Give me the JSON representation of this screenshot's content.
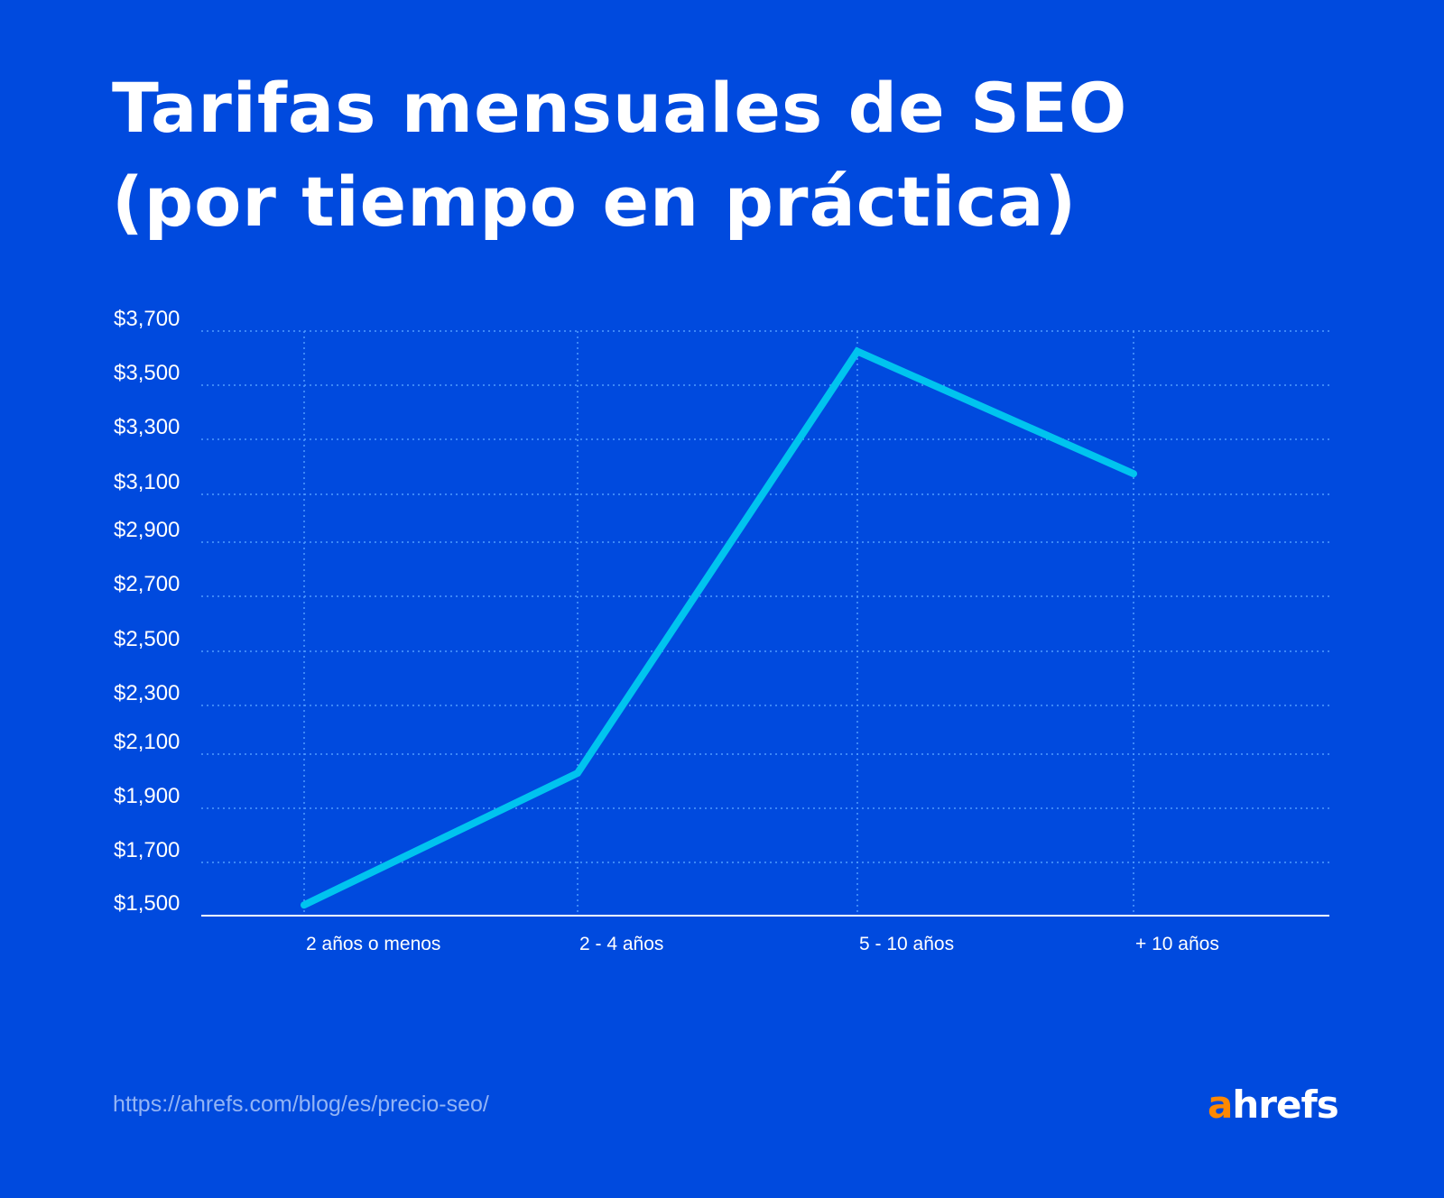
{
  "title": {
    "line1": "Tarifas mensuales de SEO",
    "line2": "(por tiempo en práctica)"
  },
  "chart_data": {
    "type": "line",
    "title": "Tarifas mensuales de SEO (por tiempo en práctica)",
    "xlabel": "",
    "ylabel": "",
    "categories": [
      "2 años o menos",
      "2 - 4 años",
      "5 - 10 años",
      "+ 10 años"
    ],
    "values": [
      1540,
      2030,
      3625,
      3175
    ],
    "ylim": [
      1500,
      3700
    ],
    "y_ticks": [
      3700,
      3500,
      3300,
      3100,
      2900,
      2700,
      2500,
      2300,
      2100,
      1900,
      1700,
      1500
    ],
    "y_tick_labels": [
      "$3,700",
      "$3,500",
      "$3,300",
      "$3,100",
      "$2,900",
      "$2,700",
      "$2,500",
      "$2,300",
      "$2,100",
      "$1,900",
      "$1,700",
      "$1,500"
    ],
    "grid": true,
    "line_color": "#00c4ef",
    "background_color": "#004ade"
  },
  "footer": {
    "source": "https://ahrefs.com/blog/es/precio-seo/",
    "logo_a": "a",
    "logo_rest": "hrefs",
    "logo_accent": "#ff8800"
  }
}
